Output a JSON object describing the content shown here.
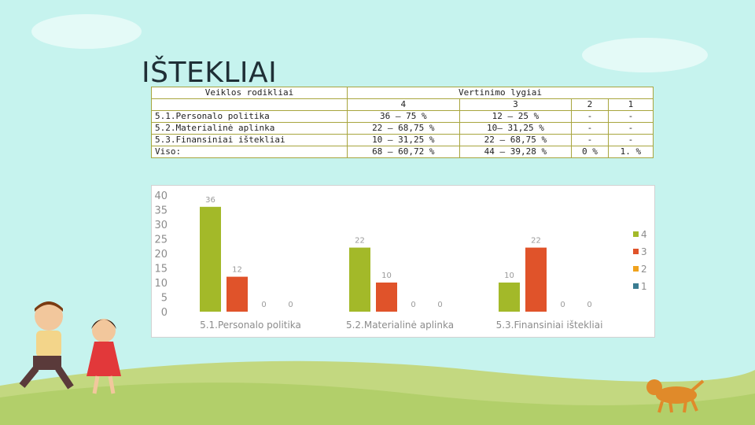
{
  "title": "IŠTEKLIAI",
  "table": {
    "header_left": "Veiklos rodikliai",
    "header_levels": "Vertinimo lygiai",
    "level_labels": [
      "4",
      "3",
      "2",
      "1"
    ],
    "rows": [
      {
        "label": "5.1.Personalo politika",
        "cells": [
          "36 – 75 %",
          "12 – 25 %",
          "-",
          "-"
        ]
      },
      {
        "label": "5.2.Materialinė aplinka",
        "cells": [
          "22 – 68,75 %",
          "10– 31,25 %",
          "-",
          "-"
        ]
      },
      {
        "label": "5.3.Finansiniai ištekliai",
        "cells": [
          "10 – 31,25 %",
          "22 – 68,75 %",
          "-",
          "-"
        ]
      },
      {
        "label": "Viso:",
        "cells": [
          "68 – 60,72 %",
          "44 – 39,28 %",
          "0 %",
          "1.   %"
        ]
      }
    ]
  },
  "chart_data": {
    "type": "bar",
    "categories": [
      "5.1.Personalo politika",
      "5.2.Materialinė aplinka",
      "5.3.Finansiniai ištekliai"
    ],
    "series": [
      {
        "name": "4",
        "color": "#a3b929",
        "values": [
          36,
          22,
          10
        ]
      },
      {
        "name": "3",
        "color": "#e0532a",
        "values": [
          12,
          10,
          22
        ]
      },
      {
        "name": "2",
        "color": "#f0a21d",
        "values": [
          0,
          0,
          0
        ]
      },
      {
        "name": "1",
        "color": "#3a7c91",
        "values": [
          0,
          0,
          0
        ]
      }
    ],
    "ylim": [
      0,
      40
    ],
    "yticks": [
      0,
      5,
      10,
      15,
      20,
      25,
      30,
      35,
      40
    ],
    "data_labels": true,
    "grid": false,
    "legend_position": "right"
  }
}
